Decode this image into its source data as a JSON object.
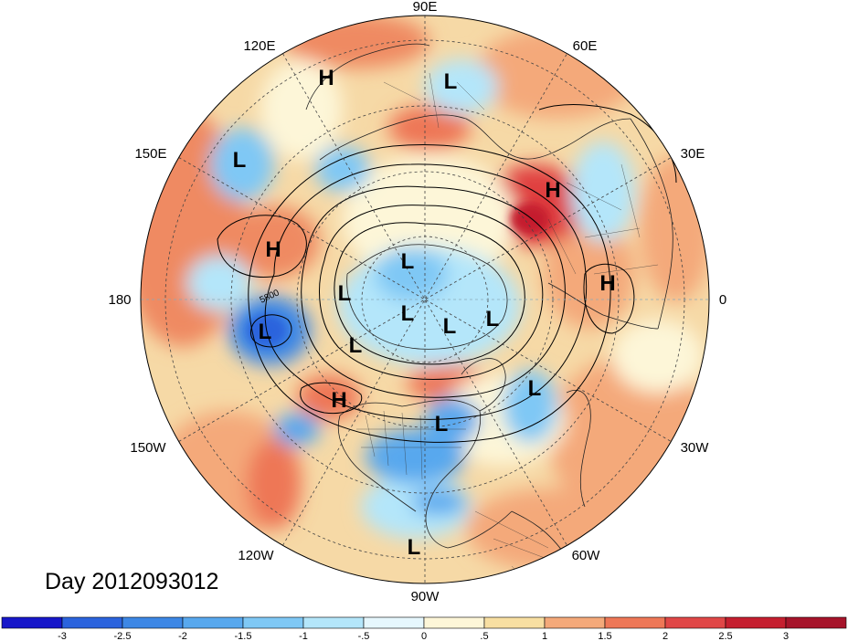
{
  "title": "Day 2012093012",
  "longitude_labels": {
    "top": "90E",
    "upper_left": "120E",
    "upper_right": "60E",
    "left_upper": "150E",
    "right_upper": "30E",
    "left": "180",
    "right": "0",
    "left_lower": "150W",
    "right_lower": "30W",
    "lower_left": "120W",
    "lower_right": "60W",
    "bottom": "90W"
  },
  "contour_label": "5800",
  "pressure_centers": [
    {
      "letter": "H"
    },
    {
      "letter": "L"
    },
    {
      "letter": "L"
    },
    {
      "letter": "H"
    },
    {
      "letter": "H"
    },
    {
      "letter": "L"
    },
    {
      "letter": "L"
    },
    {
      "letter": "H"
    },
    {
      "letter": "L"
    },
    {
      "letter": "L"
    },
    {
      "letter": "L"
    },
    {
      "letter": "L"
    },
    {
      "letter": "L"
    },
    {
      "letter": "H"
    },
    {
      "letter": "L"
    },
    {
      "letter": "L"
    },
    {
      "letter": "L"
    }
  ],
  "colorbar": {
    "labels": [
      "-3",
      "-2.5",
      "-2",
      "-1.5",
      "-1",
      "-.5",
      "0",
      ".5",
      "1",
      "1.5",
      "2",
      "2.5",
      "3"
    ],
    "colors": [
      "#1717c9",
      "#2b63dd",
      "#3d87e5",
      "#58a8ee",
      "#7fc8f5",
      "#b4e6fa",
      "#e6f7fd",
      "#fdf6d8",
      "#f8dfa2",
      "#f4a97a",
      "#ee7757",
      "#e04747",
      "#c51f2f",
      "#a6142a"
    ]
  },
  "colors": {
    "disk_base": "#f6d9a6",
    "warm": "#ef8a62",
    "hot": "#e04040",
    "cool": "#9fd3f2",
    "cold": "#3d87e5"
  }
}
